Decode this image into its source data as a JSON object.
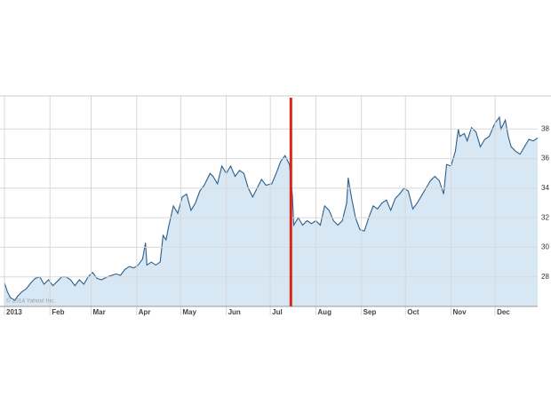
{
  "chart_data": {
    "type": "area",
    "copyright": "© 2014 Yahoo! Inc.",
    "x": [
      1,
      3,
      5,
      8,
      10,
      13,
      16,
      19,
      22,
      25,
      28,
      31,
      34,
      37,
      40,
      43,
      46,
      49,
      52,
      55,
      58,
      61,
      64,
      67,
      71,
      74,
      77,
      80,
      83,
      86,
      89,
      92,
      95,
      97,
      98,
      101,
      104,
      107,
      109,
      111,
      113,
      116,
      119,
      122,
      125,
      128,
      131,
      134,
      137,
      141,
      143,
      146,
      149,
      152,
      155,
      158,
      161,
      164,
      167,
      170,
      173,
      176,
      179,
      183,
      186,
      189,
      192,
      195,
      197,
      198,
      201,
      204,
      207,
      210,
      213,
      216,
      219,
      222,
      225,
      228,
      231,
      234,
      235,
      237,
      240,
      243,
      246,
      249,
      252,
      255,
      258,
      261,
      264,
      267,
      270,
      273,
      276,
      279,
      282,
      285,
      288,
      291,
      294,
      297,
      300,
      302,
      305,
      308,
      310,
      311,
      314,
      316,
      319,
      322,
      325,
      328,
      331,
      334,
      335,
      338,
      339,
      342,
      344,
      346,
      349,
      352,
      355,
      358,
      361,
      364
    ],
    "values": [
      27.6,
      27.0,
      26.6,
      26.4,
      26.7,
      27.0,
      27.2,
      27.6,
      27.9,
      28.0,
      27.5,
      27.8,
      27.4,
      27.7,
      28.0,
      28.0,
      27.8,
      27.4,
      27.8,
      27.5,
      28.0,
      28.3,
      27.9,
      27.8,
      28.0,
      28.1,
      28.2,
      28.1,
      28.5,
      28.7,
      28.6,
      28.8,
      29.2,
      30.3,
      28.8,
      29.0,
      28.8,
      29.0,
      30.8,
      30.5,
      31.5,
      32.8,
      32.3,
      33.4,
      33.6,
      32.5,
      33.0,
      33.8,
      34.2,
      35.0,
      34.8,
      34.3,
      35.5,
      35.0,
      35.5,
      34.8,
      35.2,
      35.0,
      34.0,
      33.4,
      34.0,
      34.6,
      34.2,
      34.3,
      35.0,
      35.8,
      36.2,
      35.6,
      33.5,
      31.5,
      32.0,
      31.5,
      31.8,
      31.6,
      31.8,
      31.5,
      32.8,
      32.5,
      31.8,
      31.5,
      31.8,
      33.0,
      34.7,
      33.5,
      32.0,
      31.2,
      31.1,
      32.0,
      32.8,
      32.6,
      33.0,
      33.2,
      32.5,
      33.3,
      33.6,
      34.0,
      33.8,
      32.6,
      33.0,
      33.5,
      34.0,
      34.5,
      34.8,
      34.5,
      33.6,
      35.6,
      35.5,
      36.5,
      38.0,
      37.5,
      37.7,
      37.2,
      38.1,
      37.8,
      36.8,
      37.3,
      37.5,
      38.2,
      38.4,
      38.8,
      38.0,
      38.6,
      37.5,
      36.8,
      36.5,
      36.3,
      36.8,
      37.3,
      37.2,
      37.4
    ],
    "color": "#2d5f8b",
    "fill": "#d7e7f4",
    "xlim": [
      1,
      364
    ],
    "xticks": [
      {
        "value": 1,
        "label": "2013"
      },
      {
        "value": 32,
        "label": "Feb"
      },
      {
        "value": 60,
        "label": "Mar"
      },
      {
        "value": 91,
        "label": "Apr"
      },
      {
        "value": 121,
        "label": "May"
      },
      {
        "value": 152,
        "label": "Jun"
      },
      {
        "value": 182,
        "label": "Jul"
      },
      {
        "value": 213,
        "label": "Aug"
      },
      {
        "value": 244,
        "label": "Sep"
      },
      {
        "value": 274,
        "label": "Oct"
      },
      {
        "value": 305,
        "label": "Nov"
      },
      {
        "value": 335,
        "label": "Dec"
      }
    ],
    "ylim": [
      26,
      40
    ],
    "yticks": [
      28,
      30,
      32,
      34,
      36,
      38
    ],
    "grid": true,
    "reference_line": {
      "x": 196,
      "color": "#d9261c"
    }
  }
}
